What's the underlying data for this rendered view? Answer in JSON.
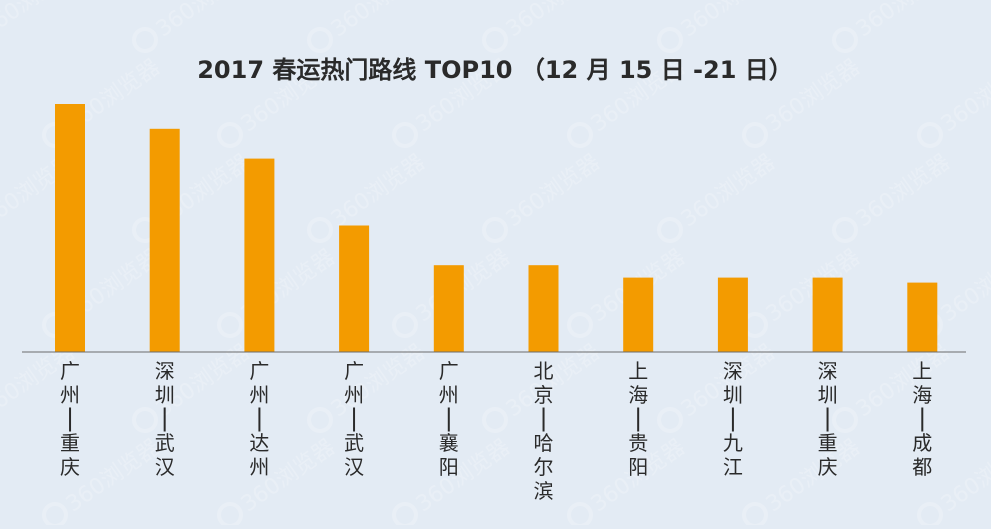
{
  "colors": {
    "background": "#e3ebf4",
    "bar": "#f39b00",
    "axis": "#6b6b6b",
    "text": "#2a2a2a"
  },
  "watermark": {
    "text": "360浏览器",
    "icon": "e-logo-icon"
  },
  "chart_data": {
    "type": "bar",
    "title": "2017 春运热门路线 TOP10 （12 月 15 日 -21 日）",
    "xlabel": "",
    "ylabel": "",
    "grid": false,
    "legend": "none",
    "categories": [
      "广州—重庆",
      "深圳—武汉",
      "广州—达州",
      "广州—武汉",
      "广州—襄阳",
      "北京—哈尔滨",
      "上海—贵阳",
      "深圳—九江",
      "深圳—重庆",
      "上海—成都"
    ],
    "values": [
      100,
      90,
      78,
      51,
      35,
      35,
      30,
      30,
      30,
      28
    ],
    "ylim": [
      0,
      100
    ]
  }
}
